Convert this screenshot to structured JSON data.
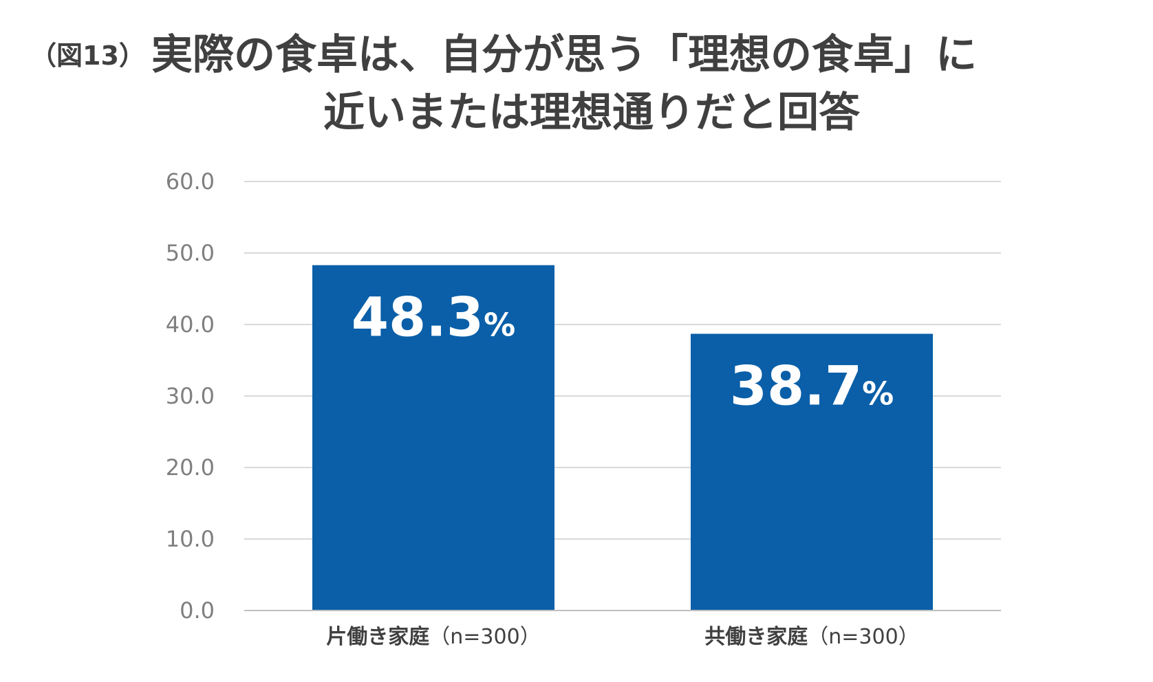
{
  "figure_label": "（図13）",
  "chart_data": {
    "type": "bar",
    "title_line1": "実際の食卓は、自分が思う「理想の食卓」に",
    "title_line2": "近いまたは理想通りだと回答",
    "categories": [
      "片働き家庭",
      "共働き家庭"
    ],
    "category_notes": [
      "（n=300）",
      "（n=300）"
    ],
    "values": [
      48.3,
      38.7
    ],
    "value_labels": [
      "48.3",
      "38.7"
    ],
    "value_suffix": "%",
    "ylim": [
      0,
      60
    ],
    "yticks": [
      "0.0",
      "10.0",
      "20.0",
      "30.0",
      "40.0",
      "50.0",
      "60.0"
    ],
    "ytick_values": [
      0,
      10,
      20,
      30,
      40,
      50,
      60
    ],
    "grid": true,
    "bar_color": "#0a5fa8",
    "grid_color": "#d9d9d9",
    "xlabel": "",
    "ylabel": ""
  }
}
